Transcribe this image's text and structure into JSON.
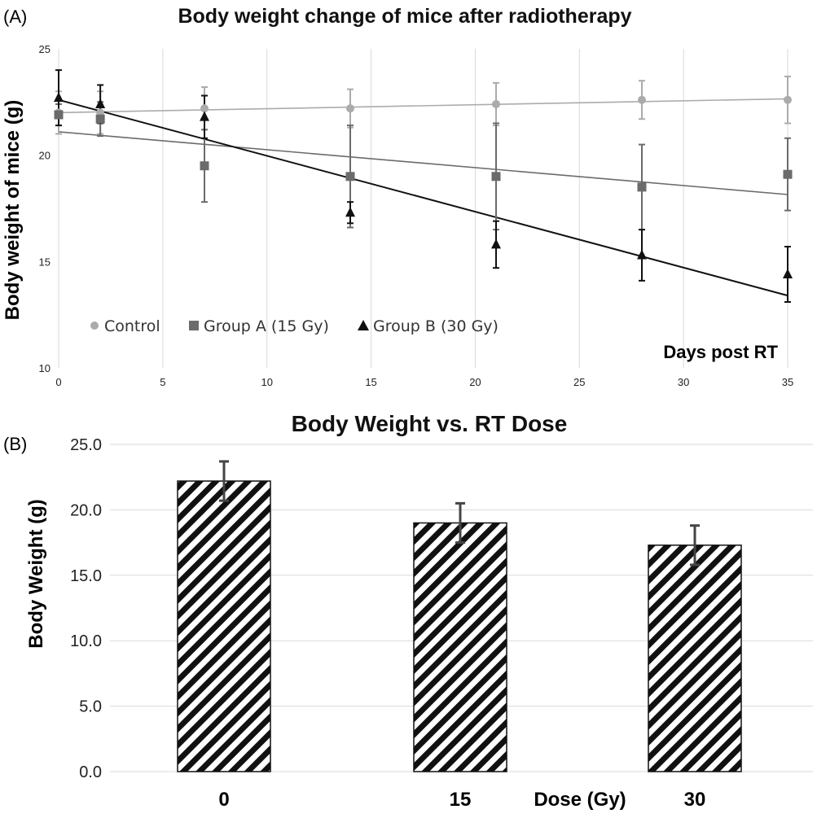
{
  "panels": {
    "a_label": "(A)",
    "b_label": "(B)"
  },
  "chart_data": [
    {
      "type": "scatter",
      "title": "Body weight change of mice after radiotherapy",
      "xlabel": "Days post RT",
      "ylabel": "Body weight of mice (g)",
      "xlim": [
        0,
        35
      ],
      "ylim": [
        10,
        25
      ],
      "x_ticks": [
        "0",
        "5",
        "10",
        "15",
        "20",
        "25",
        "30",
        "35"
      ],
      "y_ticks": [
        "10",
        "15",
        "20",
        "25"
      ],
      "grid": "vertical",
      "legend_position": "bottom-left",
      "series": [
        {
          "name": "Control",
          "marker": "circle",
          "color": "#ababab",
          "x": [
            0,
            2,
            7,
            14,
            21,
            28,
            35
          ],
          "y": [
            22.0,
            22.0,
            22.2,
            22.2,
            22.4,
            22.6,
            22.6
          ],
          "err": [
            1.0,
            1.0,
            1.0,
            0.9,
            1.0,
            0.9,
            1.1
          ],
          "trend": [
            22.0,
            22.65
          ]
        },
        {
          "name": "Group A (15 Gy)",
          "marker": "square",
          "color": "#6b6b6b",
          "x": [
            0,
            2,
            7,
            14,
            21,
            28,
            35
          ],
          "y": [
            21.9,
            21.7,
            19.5,
            19.0,
            19.0,
            18.5,
            19.1
          ],
          "err": [
            0.5,
            0.8,
            1.7,
            2.4,
            2.5,
            2.0,
            1.7
          ],
          "trend": [
            21.1,
            18.15
          ]
        },
        {
          "name": "Group B (30 Gy)",
          "marker": "triangle",
          "color": "#111111",
          "x": [
            0,
            2,
            7,
            14,
            21,
            28,
            35
          ],
          "y": [
            22.7,
            22.4,
            21.8,
            17.3,
            15.8,
            15.3,
            14.4
          ],
          "err": [
            1.3,
            0.9,
            1.0,
            0.5,
            1.1,
            1.2,
            1.3
          ],
          "trend": [
            22.6,
            13.4
          ]
        }
      ]
    },
    {
      "type": "bar",
      "title": "Body Weight vs. RT Dose",
      "xlabel": "Dose (Gy)",
      "ylabel": "Body Weight (g)",
      "categories": [
        "0",
        "15",
        "30"
      ],
      "values": [
        22.2,
        19.0,
        17.3
      ],
      "err": [
        1.5,
        1.5,
        1.5
      ],
      "ylim": [
        0,
        25
      ],
      "y_ticks": [
        "0.0",
        "5.0",
        "10.0",
        "15.0",
        "20.0",
        "25.0"
      ],
      "grid": "horizontal",
      "fill": "diagonal-hatch"
    }
  ]
}
